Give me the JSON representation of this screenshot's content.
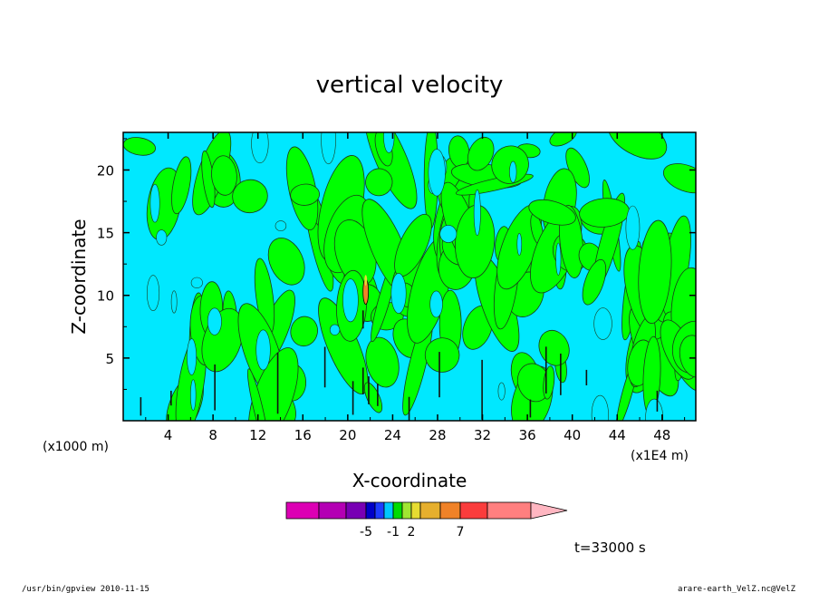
{
  "chart_data": {
    "type": "heatmap",
    "title": "vertical velocity",
    "xlabel": "X-coordinate",
    "ylabel": "Z-coordinate",
    "x_ticks": [
      4,
      8,
      12,
      16,
      20,
      24,
      28,
      32,
      36,
      40,
      44,
      48
    ],
    "y_ticks": [
      5,
      10,
      15,
      20
    ],
    "x_tick_labels": [
      "4",
      "8",
      "12",
      "16",
      "20",
      "24",
      "28",
      "32",
      "36",
      "40",
      "44",
      "48"
    ],
    "y_tick_labels": [
      "5",
      "10",
      "15",
      "20"
    ],
    "xlim": [
      0,
      51
    ],
    "ylim": [
      0,
      23
    ],
    "x_unit_left": "(x1000 m)",
    "x_unit_right": "(x1E4 m)",
    "time_label": "t=33000 s",
    "colorbar": {
      "colors": [
        "#dc00b4",
        "#b400b4",
        "#7800b4",
        "#0000c8",
        "#1e3cff",
        "#00c8ff",
        "#00dc00",
        "#a0e632",
        "#e6dc32",
        "#e6af2d",
        "#f08228",
        "#fa3c3c",
        "#ff7f7f",
        "#ffb6c1"
      ],
      "tick_labels": [
        "-5",
        "-1",
        "2",
        "7"
      ]
    },
    "contour_fill_levels": [
      {
        "range": "< 0",
        "color": "#00e8ff"
      },
      {
        "range": "> 0",
        "color": "#00ff00"
      }
    ]
  },
  "footer": {
    "left": "/usr/bin/gpview   2010-11-15",
    "right": "arare-earth_VelZ.nc@VelZ"
  }
}
